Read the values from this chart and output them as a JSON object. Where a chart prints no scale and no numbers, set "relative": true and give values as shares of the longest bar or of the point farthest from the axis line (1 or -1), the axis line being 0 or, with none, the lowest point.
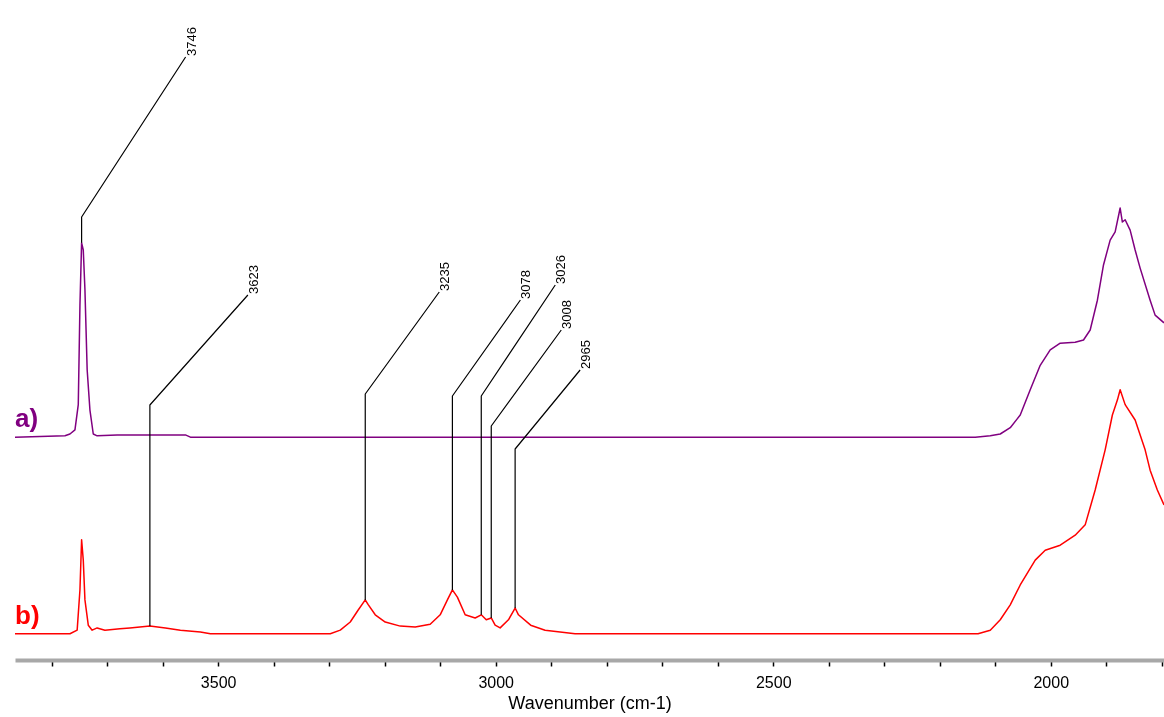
{
  "chart_data": {
    "type": "line",
    "relative": true,
    "xlabel": "Wavenumber (cm-1)",
    "xlim": [
      3866,
      1796
    ],
    "xticks": [
      {
        "value": 3800,
        "label": null
      },
      {
        "value": 3700,
        "label": null
      },
      {
        "value": 3600,
        "label": null
      },
      3500,
      {
        "value": 3400,
        "label": null
      },
      {
        "value": 3300,
        "label": null
      },
      {
        "value": 3200,
        "label": null
      },
      {
        "value": 3100,
        "label": null
      },
      3000,
      {
        "value": 2900,
        "label": null
      },
      {
        "value": 2800,
        "label": null
      },
      {
        "value": 2700,
        "label": null
      },
      {
        "value": 2600,
        "label": null
      },
      2500,
      {
        "value": 2400,
        "label": null
      },
      {
        "value": 2300,
        "label": null
      },
      {
        "value": 2200,
        "label": null
      },
      {
        "value": 2100,
        "label": null
      },
      2000,
      {
        "value": 1900,
        "label": null
      },
      {
        "value": 1800,
        "label": null
      }
    ],
    "grid": false,
    "series": [
      {
        "name": "a)",
        "color": "#800080",
        "x": [
          3866,
          3776,
          3767,
          3758,
          3752,
          3749,
          3746,
          3743,
          3740,
          3736,
          3731,
          3725,
          3718,
          3682,
          3559,
          3550,
          2136,
          2109,
          2091,
          2073,
          2055,
          2037,
          2019,
          2001,
          1983,
          1956,
          1941,
          1929,
          1916,
          1905,
          1893,
          1884,
          1875,
          1871,
          1866,
          1857,
          1848,
          1839,
          1821,
          1812,
          1796
        ],
        "values": [
          0.493,
          0.496,
          0.5,
          0.509,
          0.565,
          0.785,
          0.923,
          0.907,
          0.819,
          0.642,
          0.553,
          0.5,
          0.496,
          0.498,
          0.498,
          0.493,
          0.493,
          0.496,
          0.5,
          0.514,
          0.542,
          0.598,
          0.652,
          0.686,
          0.701,
          0.703,
          0.708,
          0.73,
          0.796,
          0.874,
          0.929,
          0.947,
          1.0,
          0.969,
          0.974,
          0.951,
          0.907,
          0.867,
          0.796,
          0.763,
          0.746
        ]
      },
      {
        "name": "b)",
        "color": "#ff0000",
        "x": [
          3866,
          3767,
          3754,
          3749,
          3746,
          3743,
          3740,
          3734,
          3727,
          3718,
          3704,
          3677,
          3659,
          3623,
          3595,
          3568,
          3532,
          3514,
          3298,
          3280,
          3262,
          3248,
          3235,
          3230,
          3217,
          3199,
          3172,
          3145,
          3118,
          3100,
          3087,
          3078,
          3069,
          3055,
          3037,
          3026,
          3017,
          3008,
          3001,
          2992,
          2977,
          2965,
          2959,
          2937,
          2911,
          2857,
          2131,
          2109,
          2091,
          2073,
          2055,
          2028,
          2010,
          1983,
          1956,
          1938,
          1920,
          1902,
          1889,
          1880,
          1875,
          1866,
          1848,
          1830,
          1821,
          1808,
          1796
        ],
        "values": [
          0.058,
          0.058,
          0.066,
          0.155,
          0.266,
          0.221,
          0.133,
          0.077,
          0.066,
          0.071,
          0.066,
          0.069,
          0.071,
          0.075,
          0.071,
          0.066,
          0.062,
          0.058,
          0.058,
          0.066,
          0.084,
          0.11,
          0.133,
          0.123,
          0.1,
          0.084,
          0.075,
          0.073,
          0.079,
          0.1,
          0.133,
          0.155,
          0.139,
          0.1,
          0.093,
          0.1,
          0.089,
          0.093,
          0.077,
          0.071,
          0.089,
          0.115,
          0.1,
          0.077,
          0.066,
          0.058,
          0.058,
          0.066,
          0.089,
          0.122,
          0.166,
          0.221,
          0.243,
          0.254,
          0.276,
          0.299,
          0.376,
          0.465,
          0.542,
          0.575,
          0.598,
          0.565,
          0.531,
          0.465,
          0.42,
          0.376,
          0.343
        ]
      }
    ],
    "annotations": [
      {
        "text": "3746",
        "x": 3746,
        "y": 0.923
      },
      {
        "text": "3623",
        "x": 3623,
        "y": 0.075
      },
      {
        "text": "3235",
        "x": 3235,
        "y": 0.133
      },
      {
        "text": "3078",
        "x": 3078,
        "y": 0.155
      },
      {
        "text": "3026",
        "x": 3026,
        "y": 0.1
      },
      {
        "text": "3008",
        "x": 3008,
        "y": 0.093
      },
      {
        "text": "2965",
        "x": 2965,
        "y": 0.115
      }
    ]
  }
}
